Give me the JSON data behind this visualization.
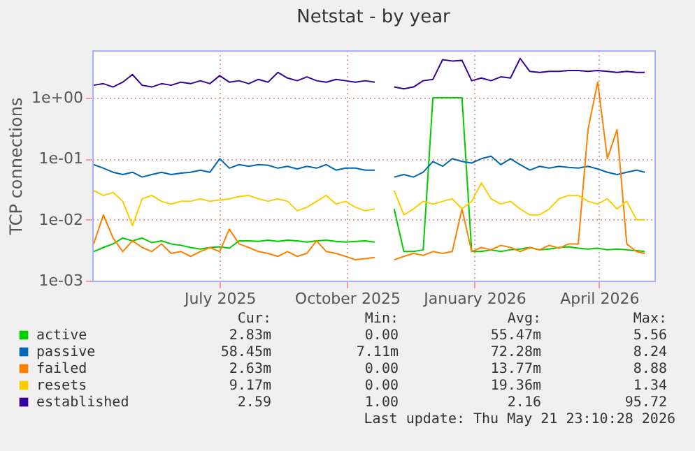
{
  "chart_data": {
    "type": "line",
    "title": "Netstat - by year",
    "ylabel": "TCP connections",
    "log": true,
    "grid": true,
    "legend": "bottom",
    "line_style": "solid",
    "marker": "none",
    "xlim": [
      "2025-03-31",
      "2026-05-11"
    ],
    "xticks": [
      {
        "value": "2025-07-01",
        "label": "July 2025"
      },
      {
        "value": "2025-10-01",
        "label": "October 2025"
      },
      {
        "value": "2026-01-01",
        "label": "January 2026"
      },
      {
        "value": "2026-04-01",
        "label": "April 2026"
      }
    ],
    "ylim": [
      0.001,
      6
    ],
    "yticks": [
      {
        "value": 1,
        "label": "1e+00"
      },
      {
        "value": 0.1,
        "label": "1e-01"
      },
      {
        "value": 0.01,
        "label": "1e-02"
      },
      {
        "value": 0.001,
        "label": "1e-03"
      }
    ],
    "x": [
      "2025-04-01",
      "2025-04-08",
      "2025-04-15",
      "2025-04-22",
      "2025-04-29",
      "2025-05-06",
      "2025-05-13",
      "2025-05-20",
      "2025-05-27",
      "2025-06-03",
      "2025-06-10",
      "2025-06-17",
      "2025-06-24",
      "2025-07-01",
      "2025-07-08",
      "2025-07-15",
      "2025-07-22",
      "2025-07-29",
      "2025-08-05",
      "2025-08-12",
      "2025-08-19",
      "2025-08-26",
      "2025-09-02",
      "2025-09-09",
      "2025-09-16",
      "2025-09-23",
      "2025-09-30",
      "2025-10-07",
      "2025-10-14",
      "2025-10-21",
      "2025-10-28",
      "2025-11-04",
      "2025-11-11",
      "2025-11-18",
      "2025-11-25",
      "2025-12-02",
      "2025-12-09",
      "2025-12-16",
      "2025-12-23",
      "2025-12-30",
      "2026-01-06",
      "2026-01-13",
      "2026-01-20",
      "2026-01-27",
      "2026-02-03",
      "2026-02-10",
      "2026-02-17",
      "2026-02-24",
      "2026-03-03",
      "2026-03-10",
      "2026-03-17",
      "2026-03-24",
      "2026-03-31",
      "2026-04-07",
      "2026-04-14",
      "2026-04-21",
      "2026-04-28",
      "2026-05-04"
    ],
    "series": [
      {
        "name": "active",
        "color": "#00cc00",
        "values": [
          0.003,
          0.0035,
          0.004,
          0.005,
          0.0045,
          0.005,
          0.0042,
          0.0045,
          0.004,
          0.0038,
          0.0035,
          0.0033,
          0.0035,
          0.0036,
          0.0034,
          0.0045,
          0.0045,
          0.0044,
          0.0046,
          0.0044,
          0.0046,
          0.0045,
          0.0043,
          0.0045,
          0.0046,
          0.0044,
          0.0043,
          0.0044,
          0.0045,
          0.0043,
          null,
          0.015,
          0.003,
          0.003,
          0.0032,
          1.0,
          1.0,
          1.0,
          1.0,
          0.003,
          0.003,
          0.0032,
          0.003,
          0.0032,
          0.0033,
          0.0035,
          0.0032,
          0.0033,
          0.0035,
          0.0036,
          0.0034,
          0.0033,
          0.0034,
          0.0032,
          0.0033,
          0.0032,
          0.0031,
          0.003
        ]
      },
      {
        "name": "passive",
        "color": "#0066b3",
        "values": [
          0.08,
          0.07,
          0.06,
          0.055,
          0.06,
          0.05,
          0.055,
          0.06,
          0.055,
          0.058,
          0.06,
          0.065,
          0.06,
          0.1,
          0.07,
          0.08,
          0.075,
          0.08,
          0.078,
          0.07,
          0.075,
          0.068,
          0.075,
          0.07,
          0.08,
          0.065,
          0.07,
          0.07,
          0.065,
          0.065,
          null,
          0.05,
          0.055,
          0.05,
          0.06,
          0.09,
          0.075,
          0.1,
          0.09,
          0.085,
          0.1,
          0.11,
          0.08,
          0.1,
          0.08,
          0.065,
          0.075,
          0.07,
          0.075,
          0.072,
          0.07,
          0.075,
          0.068,
          0.06,
          0.055,
          0.06,
          0.065,
          0.06
        ]
      },
      {
        "name": "failed",
        "color": "#ff8000",
        "values": [
          0.004,
          0.012,
          0.005,
          0.003,
          0.0045,
          0.0035,
          0.003,
          0.004,
          0.0028,
          0.003,
          0.0025,
          0.003,
          0.0035,
          0.003,
          0.007,
          0.004,
          0.0035,
          0.003,
          0.0028,
          0.0025,
          0.003,
          0.0025,
          0.0028,
          0.0045,
          0.003,
          0.0028,
          0.0025,
          0.0022,
          0.0023,
          0.0024,
          null,
          0.0022,
          0.0025,
          0.0028,
          0.0026,
          0.003,
          0.0028,
          0.003,
          0.015,
          0.003,
          0.0035,
          0.0032,
          0.0038,
          0.0035,
          0.003,
          0.0035,
          0.0032,
          0.0038,
          0.0034,
          0.004,
          0.004,
          0.3,
          1.8,
          0.1,
          0.3,
          0.004,
          0.003,
          0.0028
        ]
      },
      {
        "name": "resets",
        "color": "#ffcc00",
        "values": [
          0.03,
          0.025,
          0.028,
          0.02,
          0.008,
          0.022,
          0.025,
          0.02,
          0.018,
          0.02,
          0.02,
          0.022,
          0.02,
          0.021,
          0.022,
          0.024,
          0.025,
          0.022,
          0.02,
          0.022,
          0.02,
          0.014,
          0.016,
          0.02,
          0.025,
          0.018,
          0.02,
          0.016,
          0.014,
          0.015,
          null,
          0.03,
          0.012,
          0.015,
          0.02,
          0.018,
          0.02,
          0.022,
          0.015,
          0.02,
          0.04,
          0.022,
          0.018,
          0.02,
          0.015,
          0.012,
          0.012,
          0.015,
          0.022,
          0.025,
          0.025,
          0.02,
          0.018,
          0.022,
          0.015,
          0.02,
          0.01,
          0.01
        ]
      },
      {
        "name": "established",
        "color": "#330099",
        "values": [
          1.6,
          1.7,
          1.5,
          1.8,
          2.4,
          1.6,
          1.5,
          1.7,
          1.6,
          1.8,
          1.7,
          1.9,
          1.7,
          2.3,
          1.8,
          1.9,
          1.7,
          2.0,
          1.8,
          2.6,
          2.1,
          1.9,
          2.2,
          1.9,
          1.8,
          2.0,
          1.9,
          1.8,
          1.9,
          1.8,
          null,
          1.5,
          1.4,
          1.5,
          1.9,
          2.0,
          4.2,
          4.0,
          4.1,
          1.9,
          2.1,
          1.9,
          2.2,
          2.1,
          4.4,
          2.7,
          2.6,
          2.7,
          2.7,
          2.8,
          2.8,
          2.7,
          2.8,
          2.7,
          2.6,
          2.7,
          2.6,
          2.6
        ]
      }
    ],
    "annotations": [
      "Cur:",
      "Min:",
      "Avg:",
      "Max:",
      "2.83m",
      "0.00",
      "55.47m",
      "5.56",
      "58.45m",
      "7.11m",
      "72.28m",
      "8.24",
      "2.63m",
      "0.00",
      "13.77m",
      "8.88",
      "9.17m",
      "0.00",
      "19.36m",
      "1.34",
      "2.59",
      "1.00",
      "2.16",
      "95.72",
      "Last update: Thu May 21 23:10:28 2026"
    ]
  }
}
